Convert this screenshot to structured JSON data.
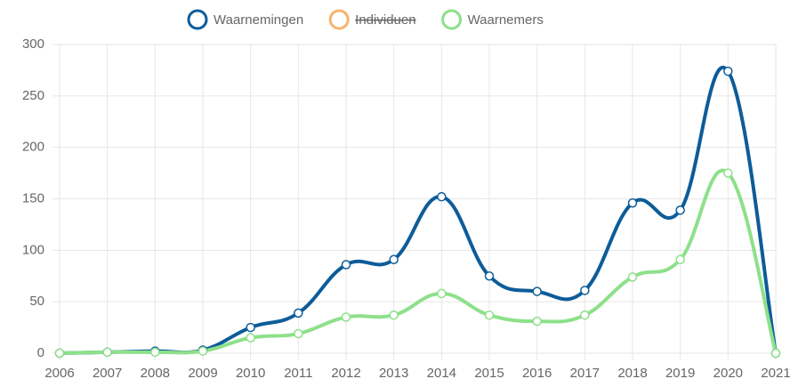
{
  "chart_data": {
    "type": "line",
    "categories": [
      "2006",
      "2007",
      "2008",
      "2009",
      "2010",
      "2011",
      "2012",
      "2013",
      "2014",
      "2015",
      "2016",
      "2017",
      "2018",
      "2019",
      "2020",
      "2021"
    ],
    "series": [
      {
        "name": "Waarnemingen",
        "color": "#0d5c99",
        "values": [
          0,
          1,
          2,
          3,
          25,
          39,
          86,
          91,
          152,
          75,
          60,
          61,
          146,
          139,
          274,
          0
        ]
      },
      {
        "name": "Individuen",
        "color": "#f7b36b",
        "hidden": true
      },
      {
        "name": "Waarnemers",
        "color": "#8ee08a",
        "values": [
          0,
          1,
          1,
          2,
          15,
          19,
          35,
          37,
          58,
          37,
          31,
          37,
          74,
          91,
          175,
          0
        ]
      }
    ],
    "ylim": [
      0,
      300
    ],
    "yticks": [
      0,
      50,
      100,
      150,
      200,
      250,
      300
    ],
    "grid": true,
    "legend": "top",
    "smooth": true
  }
}
